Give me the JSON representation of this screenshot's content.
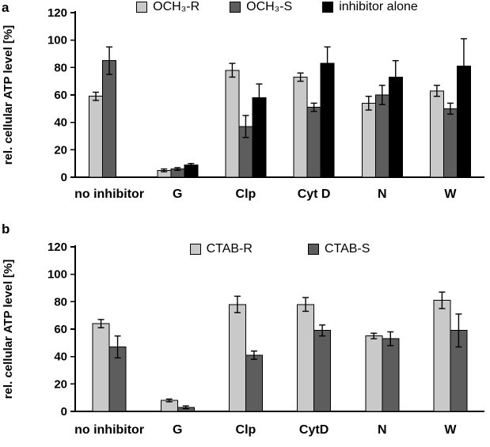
{
  "panels": [
    {
      "label": "a"
    },
    {
      "label": "b"
    }
  ],
  "colors": {
    "light_gray": "#c9c9c9",
    "dark_gray": "#5d5d5d",
    "black": "#000000"
  },
  "chart_data": [
    {
      "type": "bar",
      "title": "",
      "ylabel": "rel. cellular ATP level [%]",
      "xlabel": "",
      "ylim": [
        0,
        120
      ],
      "yticks": [
        0,
        20,
        40,
        60,
        80,
        100,
        120
      ],
      "grid": false,
      "legend_position": "top",
      "categories": [
        "no inhibitor",
        "G",
        "Clp",
        "Cyt D",
        "N",
        "W"
      ],
      "series": [
        {
          "name": "OCH₃-R",
          "color": "#c9c9c9",
          "values": [
            59,
            5,
            78,
            73,
            54,
            63
          ],
          "errors": [
            3,
            1,
            5,
            3,
            5,
            4
          ]
        },
        {
          "name": "OCH₃-S",
          "color": "#5d5d5d",
          "values": [
            85,
            6,
            37,
            51,
            60,
            50
          ],
          "errors": [
            10,
            1,
            8,
            3,
            7,
            4
          ]
        },
        {
          "name": "inhibitor alone",
          "color": "#000000",
          "values": [
            null,
            9,
            58,
            83,
            73,
            81
          ],
          "errors": [
            null,
            1,
            10,
            12,
            12,
            20
          ]
        }
      ]
    },
    {
      "type": "bar",
      "title": "",
      "ylabel": "rel. cellular ATP level [%]",
      "xlabel": "",
      "ylim": [
        0,
        120
      ],
      "yticks": [
        0,
        20,
        40,
        60,
        80,
        100,
        120
      ],
      "grid": false,
      "legend_position": "top-inside",
      "categories": [
        "no inhibitor",
        "G",
        "Clp",
        "CytD",
        "N",
        "W"
      ],
      "series": [
        {
          "name": "CTAB-R",
          "color": "#c9c9c9",
          "values": [
            64,
            8,
            78,
            78,
            55,
            81
          ],
          "errors": [
            3,
            1,
            6,
            5,
            2,
            6
          ]
        },
        {
          "name": "CTAB-S",
          "color": "#5d5d5d",
          "values": [
            47,
            3,
            41,
            59,
            53,
            59
          ],
          "errors": [
            8,
            1,
            3,
            4,
            5,
            12
          ]
        }
      ]
    }
  ]
}
